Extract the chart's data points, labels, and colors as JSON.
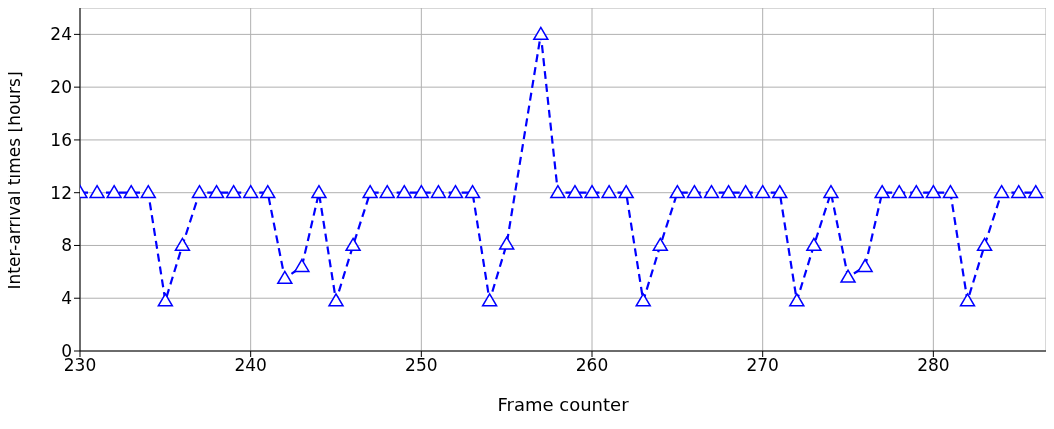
{
  "chart_data": {
    "type": "line",
    "xlabel": "Frame counter",
    "ylabel": "Inter-arrival times [hours]",
    "x": [
      230,
      231,
      232,
      233,
      234,
      235,
      236,
      237,
      238,
      239,
      240,
      241,
      242,
      243,
      244,
      245,
      246,
      247,
      248,
      249,
      250,
      251,
      252,
      253,
      254,
      255,
      257,
      258,
      259,
      260,
      261,
      262,
      263,
      264,
      265,
      266,
      267,
      268,
      269,
      270,
      271,
      272,
      273,
      274,
      275,
      276,
      277,
      278,
      279,
      280,
      281,
      282,
      283,
      284,
      285,
      286
    ],
    "series": [
      {
        "color": "#0000ff",
        "values": [
          12,
          12,
          12,
          12,
          12,
          3.8,
          8,
          12,
          12,
          12,
          12,
          12,
          5.5,
          6.4,
          12,
          3.8,
          8,
          12,
          12,
          12,
          12,
          12,
          12,
          12,
          3.8,
          8.1,
          24,
          12,
          12,
          12,
          12,
          12,
          3.8,
          8,
          12,
          12,
          12,
          12,
          12,
          12,
          12,
          3.8,
          8,
          12,
          5.6,
          6.4,
          12,
          12,
          12,
          12,
          12,
          3.8,
          8,
          12,
          12,
          12
        ]
      }
    ],
    "xlim": [
      230,
      286.6
    ],
    "xticks": [
      230,
      240,
      250,
      260,
      270,
      280
    ],
    "ylim": [
      0,
      26
    ],
    "yticks": [
      0,
      4,
      8,
      12,
      16,
      20,
      24
    ],
    "grid": true,
    "marker": "triangle",
    "line_style": "dashed",
    "legend": false
  }
}
